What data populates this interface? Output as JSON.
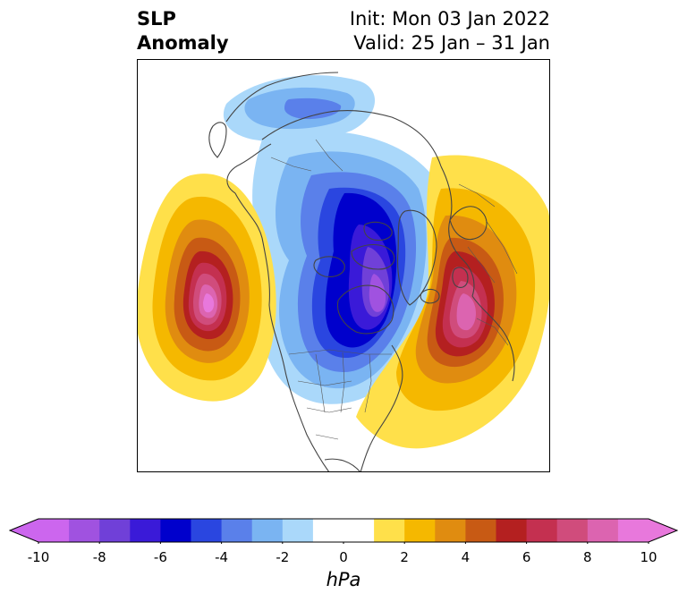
{
  "header": {
    "title_left_line1": "SLP",
    "title_left_line2": "Anomaly",
    "title_right_line1": "Init: Mon 03 Jan 2022",
    "title_right_line2": "Valid: 25 Jan – 31 Jan"
  },
  "map": {
    "field": "sea level pressure anomaly",
    "projection": "polar stereographic (Northern Hemisphere)",
    "features": [
      {
        "name": "negative-anomaly-center",
        "region": "Hudson Bay / northern Canada",
        "approx_value_hPa": -9
      },
      {
        "name": "positive-anomaly-center-pacific",
        "region": "North Pacific (Gulf of Alaska region)",
        "approx_value_hPa": 10
      },
      {
        "name": "positive-anomaly-center-europe",
        "region": "Western Europe / North Atlantic",
        "approx_value_hPa": 9
      },
      {
        "name": "negative-anomaly-siberia",
        "region": "Siberia / Eurasian Arctic",
        "approx_value_hPa": -3
      }
    ]
  },
  "colorbar": {
    "unit_label": "hPa",
    "tick_labels": [
      "-10",
      "-8",
      "-6",
      "-4",
      "-2",
      "0",
      "2",
      "4",
      "6",
      "8",
      "10"
    ],
    "min": -10,
    "max": 10,
    "step": 1,
    "extend": "both",
    "colors": [
      "#cc66ee",
      "#a052e0",
      "#7040d8",
      "#3a1ad8",
      "#0000cc",
      "#2a46e0",
      "#5a80ea",
      "#7ab4f2",
      "#aad8fa",
      "#ffffff",
      "#ffffff",
      "#ffe04a",
      "#f5b800",
      "#e08c10",
      "#c85a14",
      "#b42020",
      "#c43050",
      "#d04c7c",
      "#dc64b0",
      "#e878dc"
    ]
  }
}
